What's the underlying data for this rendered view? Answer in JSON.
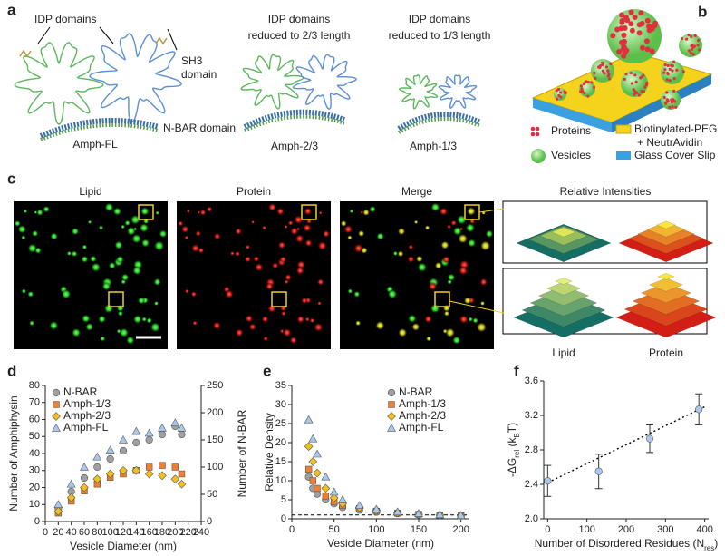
{
  "panel_labels": [
    "a",
    "b",
    "c",
    "d",
    "e",
    "f"
  ],
  "panel_a": {
    "idp_label": "IDP domains",
    "sh3_label": [
      "SH3",
      "domain"
    ],
    "nbar_label": "N-BAR domain",
    "fl_name": "Amph-FL",
    "reduced_23": [
      "IDP domains",
      "reduced to 2/3 length"
    ],
    "name_23": "Amph-2/3",
    "reduced_13": [
      "IDP domains",
      "reduced to 1/3 length"
    ],
    "name_13": "Amph-1/3"
  },
  "panel_b": {
    "legend": [
      "Proteins",
      "Biotinylated-PEG",
      "+ NeutrAvidin",
      "Vesicles",
      "Glass Cover Slip"
    ]
  },
  "panel_c": {
    "image_titles": [
      "Lipid",
      "Protein",
      "Merge"
    ],
    "inset_title": "Relative Intensities",
    "inset_labels": [
      "Lipid",
      "Protein"
    ]
  },
  "chart_data": [
    {
      "type": "scatter",
      "xlabel": "Vesicle Diameter (nm)",
      "ylabel": "Number of Amphiphysin",
      "y2label": "Number of N-BAR",
      "x": [
        20,
        40,
        60,
        80,
        100,
        120,
        140,
        160,
        180,
        200,
        210
      ],
      "xlim": [
        0,
        240
      ],
      "xticks": [
        0,
        20,
        40,
        60,
        80,
        100,
        120,
        140,
        160,
        180,
        200,
        220,
        240
      ],
      "ylim": [
        0,
        80
      ],
      "yticks": [
        0,
        10,
        20,
        30,
        40,
        50,
        60,
        70,
        80
      ],
      "y2lim": [
        0,
        250
      ],
      "y2ticks": [
        0,
        50,
        100,
        150,
        200,
        250
      ],
      "legend": "upper left",
      "series": [
        {
          "name": "N-BAR",
          "color": "#a0a0a0",
          "marker": "circle",
          "axis": "y2",
          "values": [
            25,
            55,
            80,
            100,
            115,
            130,
            145,
            150,
            160,
            175,
            160
          ]
        },
        {
          "name": "Amph-1/3",
          "color": "#f08030",
          "marker": "square",
          "values": [
            5,
            12,
            18,
            22,
            26,
            28,
            30,
            32,
            33,
            32,
            28
          ]
        },
        {
          "name": "Amph-2/3",
          "color": "#f0c020",
          "marker": "diamond",
          "values": [
            6,
            14,
            20,
            25,
            28,
            30,
            30,
            28,
            27,
            25,
            22
          ]
        },
        {
          "name": "Amph-FL",
          "color": "#a8c8ec",
          "marker": "triangle",
          "values": [
            10,
            22,
            32,
            38,
            42,
            48,
            53,
            52,
            55,
            58,
            55
          ]
        }
      ]
    },
    {
      "type": "scatter",
      "xlabel": "Vesicle Diameter (nm)",
      "ylabel": "Relative Density",
      "x": [
        20,
        25,
        30,
        40,
        50,
        60,
        80,
        100,
        125,
        150,
        175,
        200
      ],
      "xlim": [
        0,
        210
      ],
      "xticks": [
        0,
        50,
        100,
        150,
        200
      ],
      "ylim": [
        0,
        35
      ],
      "yticks": [
        0,
        5,
        10,
        15,
        20,
        25,
        30,
        35
      ],
      "hline": 1,
      "legend": "upper right",
      "series": [
        {
          "name": "N-BAR",
          "color": "#a0a0a0",
          "marker": "circle",
          "values": [
            11,
            8,
            6.5,
            5,
            4,
            3,
            2.3,
            1.8,
            1.4,
            1.1,
            0.9,
            0.8
          ]
        },
        {
          "name": "Amph-1/3",
          "color": "#f08030",
          "marker": "square",
          "values": [
            13,
            10,
            8,
            6,
            4.5,
            3.5,
            2.7,
            2,
            1.5,
            1.2,
            1,
            0.8
          ]
        },
        {
          "name": "Amph-2/3",
          "color": "#f0c020",
          "marker": "diamond",
          "values": [
            19,
            15,
            12,
            8,
            5.5,
            4,
            3,
            2.2,
            1.6,
            1.2,
            1,
            0.8
          ]
        },
        {
          "name": "Amph-FL",
          "color": "#a8c8ec",
          "marker": "triangle",
          "values": [
            26,
            21,
            17,
            11,
            7,
            5,
            3.5,
            2.5,
            1.8,
            1.4,
            1.1,
            0.9
          ]
        }
      ]
    },
    {
      "type": "scatter",
      "xlabel": [
        "Number of Disordered Residues (N",
        "res",
        ")"
      ],
      "ylabel": [
        "-ΔG",
        "rel",
        " (k",
        "B",
        "T)"
      ],
      "x": [
        0,
        130,
        260,
        385
      ],
      "values": [
        2.44,
        2.55,
        2.93,
        3.27
      ],
      "errors": [
        0.18,
        0.2,
        0.16,
        0.18
      ],
      "color": "#a8c8ec",
      "fit_line": {
        "x": [
          0,
          400
        ],
        "y": [
          2.42,
          3.3
        ]
      },
      "xlim": [
        -10,
        410
      ],
      "xticks": [
        0,
        100,
        200,
        300,
        400
      ],
      "ylim": [
        2.0,
        3.6
      ],
      "yticks": [
        {
          "value": 2.0,
          "label": "2.0"
        },
        2.4,
        2.8,
        3.2,
        3.6
      ]
    }
  ]
}
